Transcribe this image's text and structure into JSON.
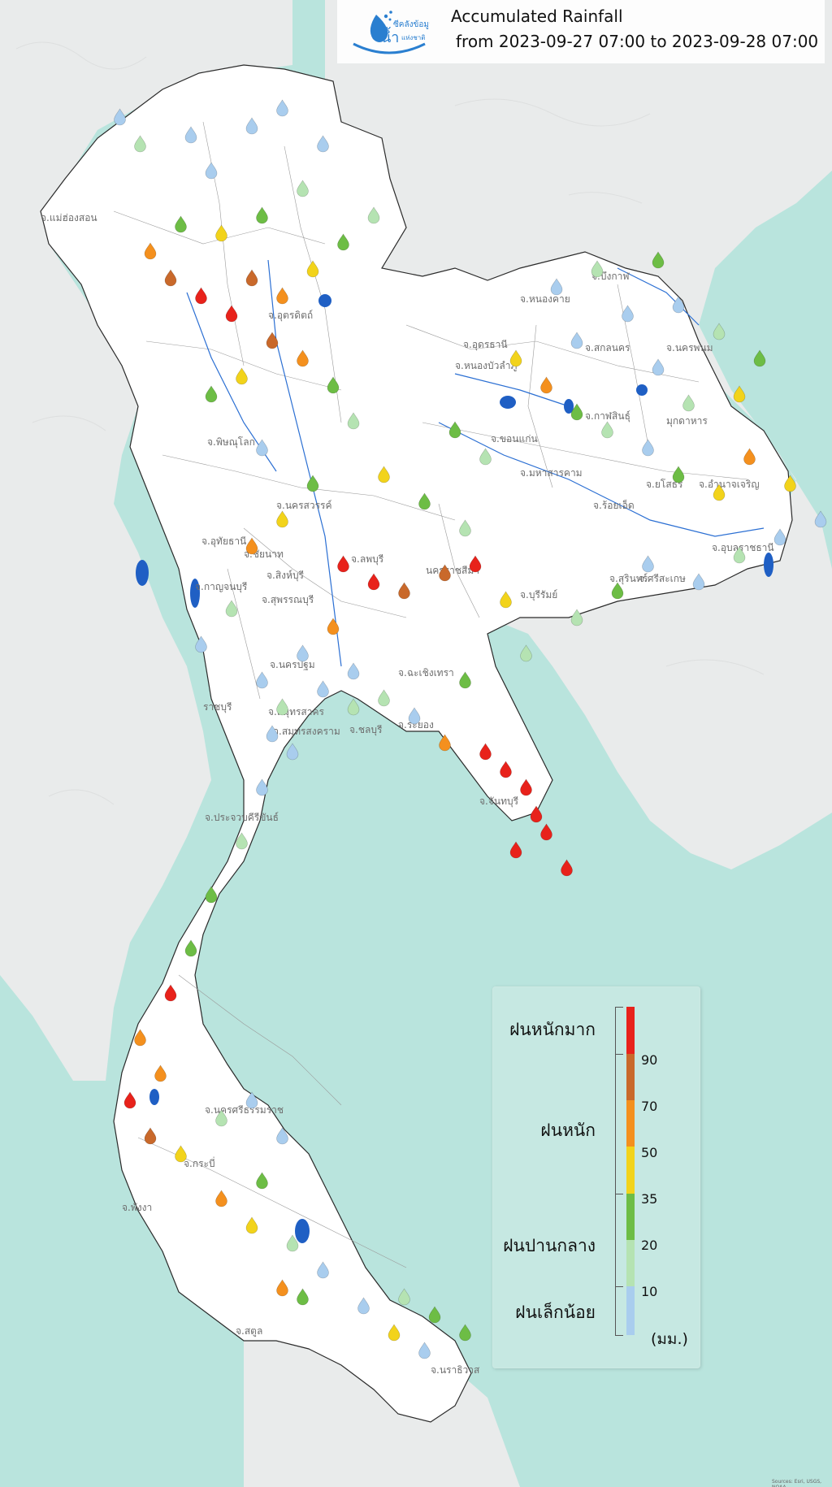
{
  "header": {
    "logo_text_top": "ซีคลังข้อมูล",
    "logo_text_main": "น้ำ",
    "logo_text_sub": "แห่งชาติ",
    "title": "Accumulated Rainfall",
    "subtitle": "from  2023-09-27 07:00 to 2023-09-28 07:00"
  },
  "legend": {
    "categories": {
      "very_heavy": "ฝนหนักมาก",
      "heavy": "ฝนหนัก",
      "moderate": "ฝนปานกลาง",
      "light": "ฝนเล็กน้อย"
    },
    "thresholds": [
      "90",
      "70",
      "50",
      "35",
      "20",
      "10"
    ],
    "unit": "(มม.)",
    "classes": [
      {
        "min": 90,
        "color": "#e8221b"
      },
      {
        "min": 70,
        "color": "#c9692b"
      },
      {
        "min": 50,
        "color": "#f4901e"
      },
      {
        "min": 35,
        "color": "#f2d31b"
      },
      {
        "min": 20,
        "color": "#6dbd45"
      },
      {
        "min": 10,
        "color": "#b5e3b2"
      },
      {
        "min": 0,
        "color": "#a9cdee"
      }
    ]
  },
  "colors": {
    "sea": "#b9e4dd",
    "land_outside": "#e9ebeb",
    "thailand": "#ffffff",
    "reservoir": "#1f5fc4"
  },
  "provinces": [
    "จ.แม่ฮ่องสอน",
    "จ.อุตรดิตถ์",
    "จ.หนองคาย",
    "จ.บึงกาฬ",
    "จ.อุดรธานี",
    "จ.สกลนคร",
    "จ.นครพนม",
    "จ.หนองบัวลำภู",
    "จ.กาฬสินธุ์",
    "มุกดาหาร",
    "จ.ขอนแก่น",
    "จ.มหาสารคาม",
    "จ.ร้อยเอ็ด",
    "จ.ยโสธร",
    "จ.อำนาจเจริญ",
    "จ.พิษณุโลก",
    "จ.นครสวรรค์",
    "จ.อุทัยธานี",
    "จ.ชัยนาท",
    "จ.สิงห์บุรี",
    "จ.ลพบุรี",
    "นครราชสีมา",
    "จ.บุรีรัมย์",
    "จ.สุรินทร์",
    "จ.ศรีสะเกษ",
    "จ.อุบลราชธานี",
    "จ.กาญจนบุรี",
    "จ.สุพรรณบุรี",
    "จ.นครปฐม",
    "ราชบุรี",
    "จ.สมุทรสาคร",
    "จ.สมุทรสงคราม",
    "จ.ระยอง",
    "จ.ประจวบคีรีขันธ์",
    "จ.กระบี่",
    "จ.สตูล",
    "จ.นราธิวาส",
    "จ.ฉะเชิงเทรา",
    "จ.ชลบุรี",
    "จ.จันทบุรี",
    "จ.พังงา",
    "จ.นครศรีธรรมราช"
  ],
  "stations": [
    {
      "lng": 98.3,
      "lat": 19.9,
      "mm": 4
    },
    {
      "lng": 98.5,
      "lat": 19.6,
      "mm": 12
    },
    {
      "lng": 99.0,
      "lat": 19.7,
      "mm": 6
    },
    {
      "lng": 99.2,
      "lat": 19.3,
      "mm": 3
    },
    {
      "lng": 99.6,
      "lat": 19.8,
      "mm": 8
    },
    {
      "lng": 99.9,
      "lat": 20.0,
      "mm": 2
    },
    {
      "lng": 100.3,
      "lat": 19.6,
      "mm": 5
    },
    {
      "lng": 100.1,
      "lat": 19.1,
      "mm": 18
    },
    {
      "lng": 99.7,
      "lat": 18.8,
      "mm": 28
    },
    {
      "lng": 99.3,
      "lat": 18.6,
      "mm": 40
    },
    {
      "lng": 98.9,
      "lat": 18.7,
      "mm": 25
    },
    {
      "lng": 98.6,
      "lat": 18.4,
      "mm": 60
    },
    {
      "lng": 98.8,
      "lat": 18.1,
      "mm": 82
    },
    {
      "lng": 99.1,
      "lat": 17.9,
      "mm": 96
    },
    {
      "lng": 99.4,
      "lat": 17.7,
      "mm": 110
    },
    {
      "lng": 99.6,
      "lat": 18.1,
      "mm": 75
    },
    {
      "lng": 99.9,
      "lat": 17.9,
      "mm": 55
    },
    {
      "lng": 100.2,
      "lat": 18.2,
      "mm": 38
    },
    {
      "lng": 100.5,
      "lat": 18.5,
      "mm": 22
    },
    {
      "lng": 100.8,
      "lat": 18.8,
      "mm": 15
    },
    {
      "lng": 99.8,
      "lat": 17.4,
      "mm": 88
    },
    {
      "lng": 100.1,
      "lat": 17.2,
      "mm": 62
    },
    {
      "lng": 99.5,
      "lat": 17.0,
      "mm": 45
    },
    {
      "lng": 99.2,
      "lat": 16.8,
      "mm": 30
    },
    {
      "lng": 100.4,
      "lat": 16.9,
      "mm": 21
    },
    {
      "lng": 100.6,
      "lat": 16.5,
      "mm": 14
    },
    {
      "lng": 99.7,
      "lat": 16.2,
      "mm": 8
    },
    {
      "lng": 100.2,
      "lat": 15.8,
      "mm": 24
    },
    {
      "lng": 99.9,
      "lat": 15.4,
      "mm": 42
    },
    {
      "lng": 99.6,
      "lat": 15.1,
      "mm": 58
    },
    {
      "lng": 100.5,
      "lat": 14.9,
      "mm": 97
    },
    {
      "lng": 100.8,
      "lat": 14.7,
      "mm": 120
    },
    {
      "lng": 101.1,
      "lat": 14.6,
      "mm": 78
    },
    {
      "lng": 101.5,
      "lat": 14.8,
      "mm": 74
    },
    {
      "lng": 101.8,
      "lat": 14.9,
      "mm": 92
    },
    {
      "lng": 102.1,
      "lat": 14.5,
      "mm": 36
    },
    {
      "lng": 100.4,
      "lat": 14.2,
      "mm": 66
    },
    {
      "lng": 100.1,
      "lat": 13.9,
      "mm": 9
    },
    {
      "lng": 100.6,
      "lat": 13.7,
      "mm": 5
    },
    {
      "lng": 100.9,
      "lat": 13.4,
      "mm": 12
    },
    {
      "lng": 101.2,
      "lat": 13.2,
      "mm": 3
    },
    {
      "lng": 101.5,
      "lat": 12.9,
      "mm": 52
    },
    {
      "lng": 101.9,
      "lat": 12.8,
      "mm": 94
    },
    {
      "lng": 102.1,
      "lat": 12.6,
      "mm": 105
    },
    {
      "lng": 102.3,
      "lat": 12.4,
      "mm": 99
    },
    {
      "lng": 102.4,
      "lat": 12.1,
      "mm": 130
    },
    {
      "lng": 102.5,
      "lat": 11.9,
      "mm": 91
    },
    {
      "lng": 102.2,
      "lat": 11.7,
      "mm": 96
    },
    {
      "lng": 102.7,
      "lat": 11.5,
      "mm": 101
    },
    {
      "lng": 101.7,
      "lat": 13.6,
      "mm": 28
    },
    {
      "lng": 102.3,
      "lat": 13.9,
      "mm": 18
    },
    {
      "lng": 102.8,
      "lat": 14.3,
      "mm": 11
    },
    {
      "lng": 103.2,
      "lat": 14.6,
      "mm": 22
    },
    {
      "lng": 103.5,
      "lat": 14.9,
      "mm": 7
    },
    {
      "lng": 104.0,
      "lat": 14.7,
      "mm": 3
    },
    {
      "lng": 104.4,
      "lat": 15.0,
      "mm": 15
    },
    {
      "lng": 104.8,
      "lat": 15.2,
      "mm": 6
    },
    {
      "lng": 105.2,
      "lat": 15.4,
      "mm": 2
    },
    {
      "lng": 105.4,
      "lat": 14.9,
      "mm": 8
    },
    {
      "lng": 104.9,
      "lat": 15.8,
      "mm": 41
    },
    {
      "lng": 104.5,
      "lat": 16.1,
      "mm": 63
    },
    {
      "lng": 104.2,
      "lat": 15.7,
      "mm": 37
    },
    {
      "lng": 103.8,
      "lat": 15.9,
      "mm": 25
    },
    {
      "lng": 103.5,
      "lat": 16.2,
      "mm": 4
    },
    {
      "lng": 103.1,
      "lat": 16.4,
      "mm": 13
    },
    {
      "lng": 102.8,
      "lat": 16.6,
      "mm": 27
    },
    {
      "lng": 102.5,
      "lat": 16.9,
      "mm": 58
    },
    {
      "lng": 102.2,
      "lat": 17.2,
      "mm": 44
    },
    {
      "lng": 102.8,
      "lat": 17.4,
      "mm": 9
    },
    {
      "lng": 103.3,
      "lat": 17.7,
      "mm": 3
    },
    {
      "lng": 103.8,
      "lat": 17.8,
      "mm": 6
    },
    {
      "lng": 104.2,
      "lat": 17.5,
      "mm": 19
    },
    {
      "lng": 104.6,
      "lat": 17.2,
      "mm": 29
    },
    {
      "lng": 104.4,
      "lat": 16.8,
      "mm": 48
    },
    {
      "lng": 103.9,
      "lat": 16.7,
      "mm": 12
    },
    {
      "lng": 103.6,
      "lat": 17.1,
      "mm": 2
    },
    {
      "lng": 102.6,
      "lat": 18.0,
      "mm": 5
    },
    {
      "lng": 103.0,
      "lat": 18.2,
      "mm": 14
    },
    {
      "lng": 103.6,
      "lat": 18.3,
      "mm": 24
    },
    {
      "lng": 101.6,
      "lat": 16.4,
      "mm": 33
    },
    {
      "lng": 101.9,
      "lat": 16.1,
      "mm": 17
    },
    {
      "lng": 101.3,
      "lat": 15.6,
      "mm": 26
    },
    {
      "lng": 101.7,
      "lat": 15.3,
      "mm": 11
    },
    {
      "lng": 100.9,
      "lat": 15.9,
      "mm": 39
    },
    {
      "lng": 99.4,
      "lat": 14.4,
      "mm": 19
    },
    {
      "lng": 99.1,
      "lat": 14.0,
      "mm": 6
    },
    {
      "lng": 99.7,
      "lat": 13.6,
      "mm": 4
    },
    {
      "lng": 99.8,
      "lat": 13.0,
      "mm": 8
    },
    {
      "lng": 99.7,
      "lat": 12.4,
      "mm": 3
    },
    {
      "lng": 99.5,
      "lat": 11.8,
      "mm": 12
    },
    {
      "lng": 99.2,
      "lat": 11.2,
      "mm": 24
    },
    {
      "lng": 99.0,
      "lat": 10.6,
      "mm": 31
    },
    {
      "lng": 98.8,
      "lat": 10.1,
      "mm": 93
    },
    {
      "lng": 98.5,
      "lat": 9.6,
      "mm": 67
    },
    {
      "lng": 98.7,
      "lat": 9.2,
      "mm": 54
    },
    {
      "lng": 98.4,
      "lat": 8.9,
      "mm": 98
    },
    {
      "lng": 98.6,
      "lat": 8.5,
      "mm": 71
    },
    {
      "lng": 98.9,
      "lat": 8.3,
      "mm": 46
    },
    {
      "lng": 99.3,
      "lat": 8.7,
      "mm": 18
    },
    {
      "lng": 99.6,
      "lat": 8.9,
      "mm": 7
    },
    {
      "lng": 99.9,
      "lat": 8.5,
      "mm": 4
    },
    {
      "lng": 99.7,
      "lat": 8.0,
      "mm": 23
    },
    {
      "lng": 99.3,
      "lat": 7.8,
      "mm": 52
    },
    {
      "lng": 99.6,
      "lat": 7.5,
      "mm": 36
    },
    {
      "lng": 100.0,
      "lat": 7.3,
      "mm": 14
    },
    {
      "lng": 100.3,
      "lat": 7.0,
      "mm": 9
    },
    {
      "lng": 100.1,
      "lat": 6.7,
      "mm": 28
    },
    {
      "lng": 99.9,
      "lat": 6.8,
      "mm": 61
    },
    {
      "lng": 100.7,
      "lat": 6.6,
      "mm": 3
    },
    {
      "lng": 101.1,
      "lat": 6.7,
      "mm": 12
    },
    {
      "lng": 101.4,
      "lat": 6.5,
      "mm": 32
    },
    {
      "lng": 101.7,
      "lat": 6.3,
      "mm": 21
    },
    {
      "lng": 101.3,
      "lat": 6.1,
      "mm": 5
    },
    {
      "lng": 101.0,
      "lat": 6.3,
      "mm": 44
    },
    {
      "lng": 100.6,
      "lat": 13.3,
      "mm": 10
    },
    {
      "lng": 100.3,
      "lat": 13.5,
      "mm": 2
    },
    {
      "lng": 99.9,
      "lat": 13.3,
      "mm": 16
    },
    {
      "lng": 100.0,
      "lat": 12.8,
      "mm": 5
    }
  ],
  "attribution": "Sources: Esri, USGS, NOAA"
}
